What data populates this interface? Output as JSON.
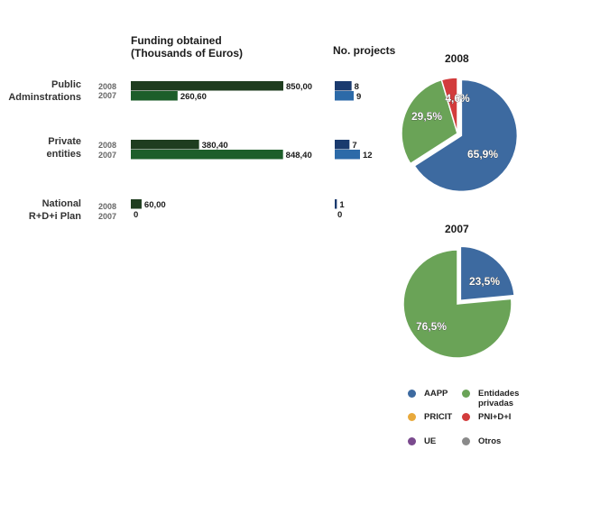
{
  "headers": {
    "funding_line1": "Funding obtained",
    "funding_line2": "(Thousands of Euros)",
    "projects": "No. projects"
  },
  "chart_data": [
    {
      "type": "bar",
      "orientation": "horizontal",
      "title": "Funding obtained (Thousands of Euros)",
      "categories": [
        {
          "label_lines": [
            "Public",
            "Adminstrations"
          ]
        },
        {
          "label_lines": [
            "Private",
            "entities"
          ]
        },
        {
          "label_lines": [
            "National",
            "R+D+i Plan"
          ]
        }
      ],
      "series": [
        {
          "name": "2008",
          "color": "#1f3d1f",
          "values": [
            850.0,
            380.4,
            60.0
          ],
          "labels": [
            "850,00",
            "380,40",
            "60,00"
          ]
        },
        {
          "name": "2007",
          "color": "#1d5e2a",
          "values": [
            260.6,
            848.4,
            0
          ],
          "labels": [
            "260,60",
            "848,40",
            "0"
          ]
        }
      ],
      "xlim": [
        0,
        850
      ]
    },
    {
      "type": "bar",
      "orientation": "horizontal",
      "title": "No. projects",
      "series": [
        {
          "name": "2008",
          "color": "#1a3a6e",
          "values": [
            8,
            7,
            1
          ],
          "labels": [
            "8",
            "7",
            "1"
          ]
        },
        {
          "name": "2007",
          "color": "#2c6aa8",
          "values": [
            9,
            12,
            0
          ],
          "labels": [
            "9",
            "12",
            "0"
          ]
        }
      ],
      "xlim": [
        0,
        12
      ]
    },
    {
      "type": "pie",
      "title": "2008",
      "slices": [
        {
          "label": "AAPP",
          "value": 65.9,
          "text": "65,9%",
          "color": "#3d6aa0"
        },
        {
          "label": "Entidades privadas",
          "value": 29.5,
          "text": "29,5%",
          "color": "#6aa357"
        },
        {
          "label": "PNI+D+I",
          "value": 4.6,
          "text": "4,6%",
          "color": "#d23c3c"
        }
      ]
    },
    {
      "type": "pie",
      "title": "2007",
      "slices": [
        {
          "label": "AAPP",
          "value": 23.5,
          "text": "23,5%",
          "color": "#3d6aa0"
        },
        {
          "label": "Entidades privadas",
          "value": 76.5,
          "text": "76,5%",
          "color": "#6aa357"
        }
      ]
    }
  ],
  "legend": [
    {
      "label": "AAPP",
      "color": "#3d6aa0"
    },
    {
      "label": "Entidades privadas",
      "color": "#6aa357"
    },
    {
      "label": "PRICIT",
      "color": "#e8a93c"
    },
    {
      "label": "PNI+D+I",
      "color": "#d23c3c"
    },
    {
      "label": "UE",
      "color": "#7a4a8e"
    },
    {
      "label": "Otros",
      "color": "#8a8a8a"
    }
  ]
}
